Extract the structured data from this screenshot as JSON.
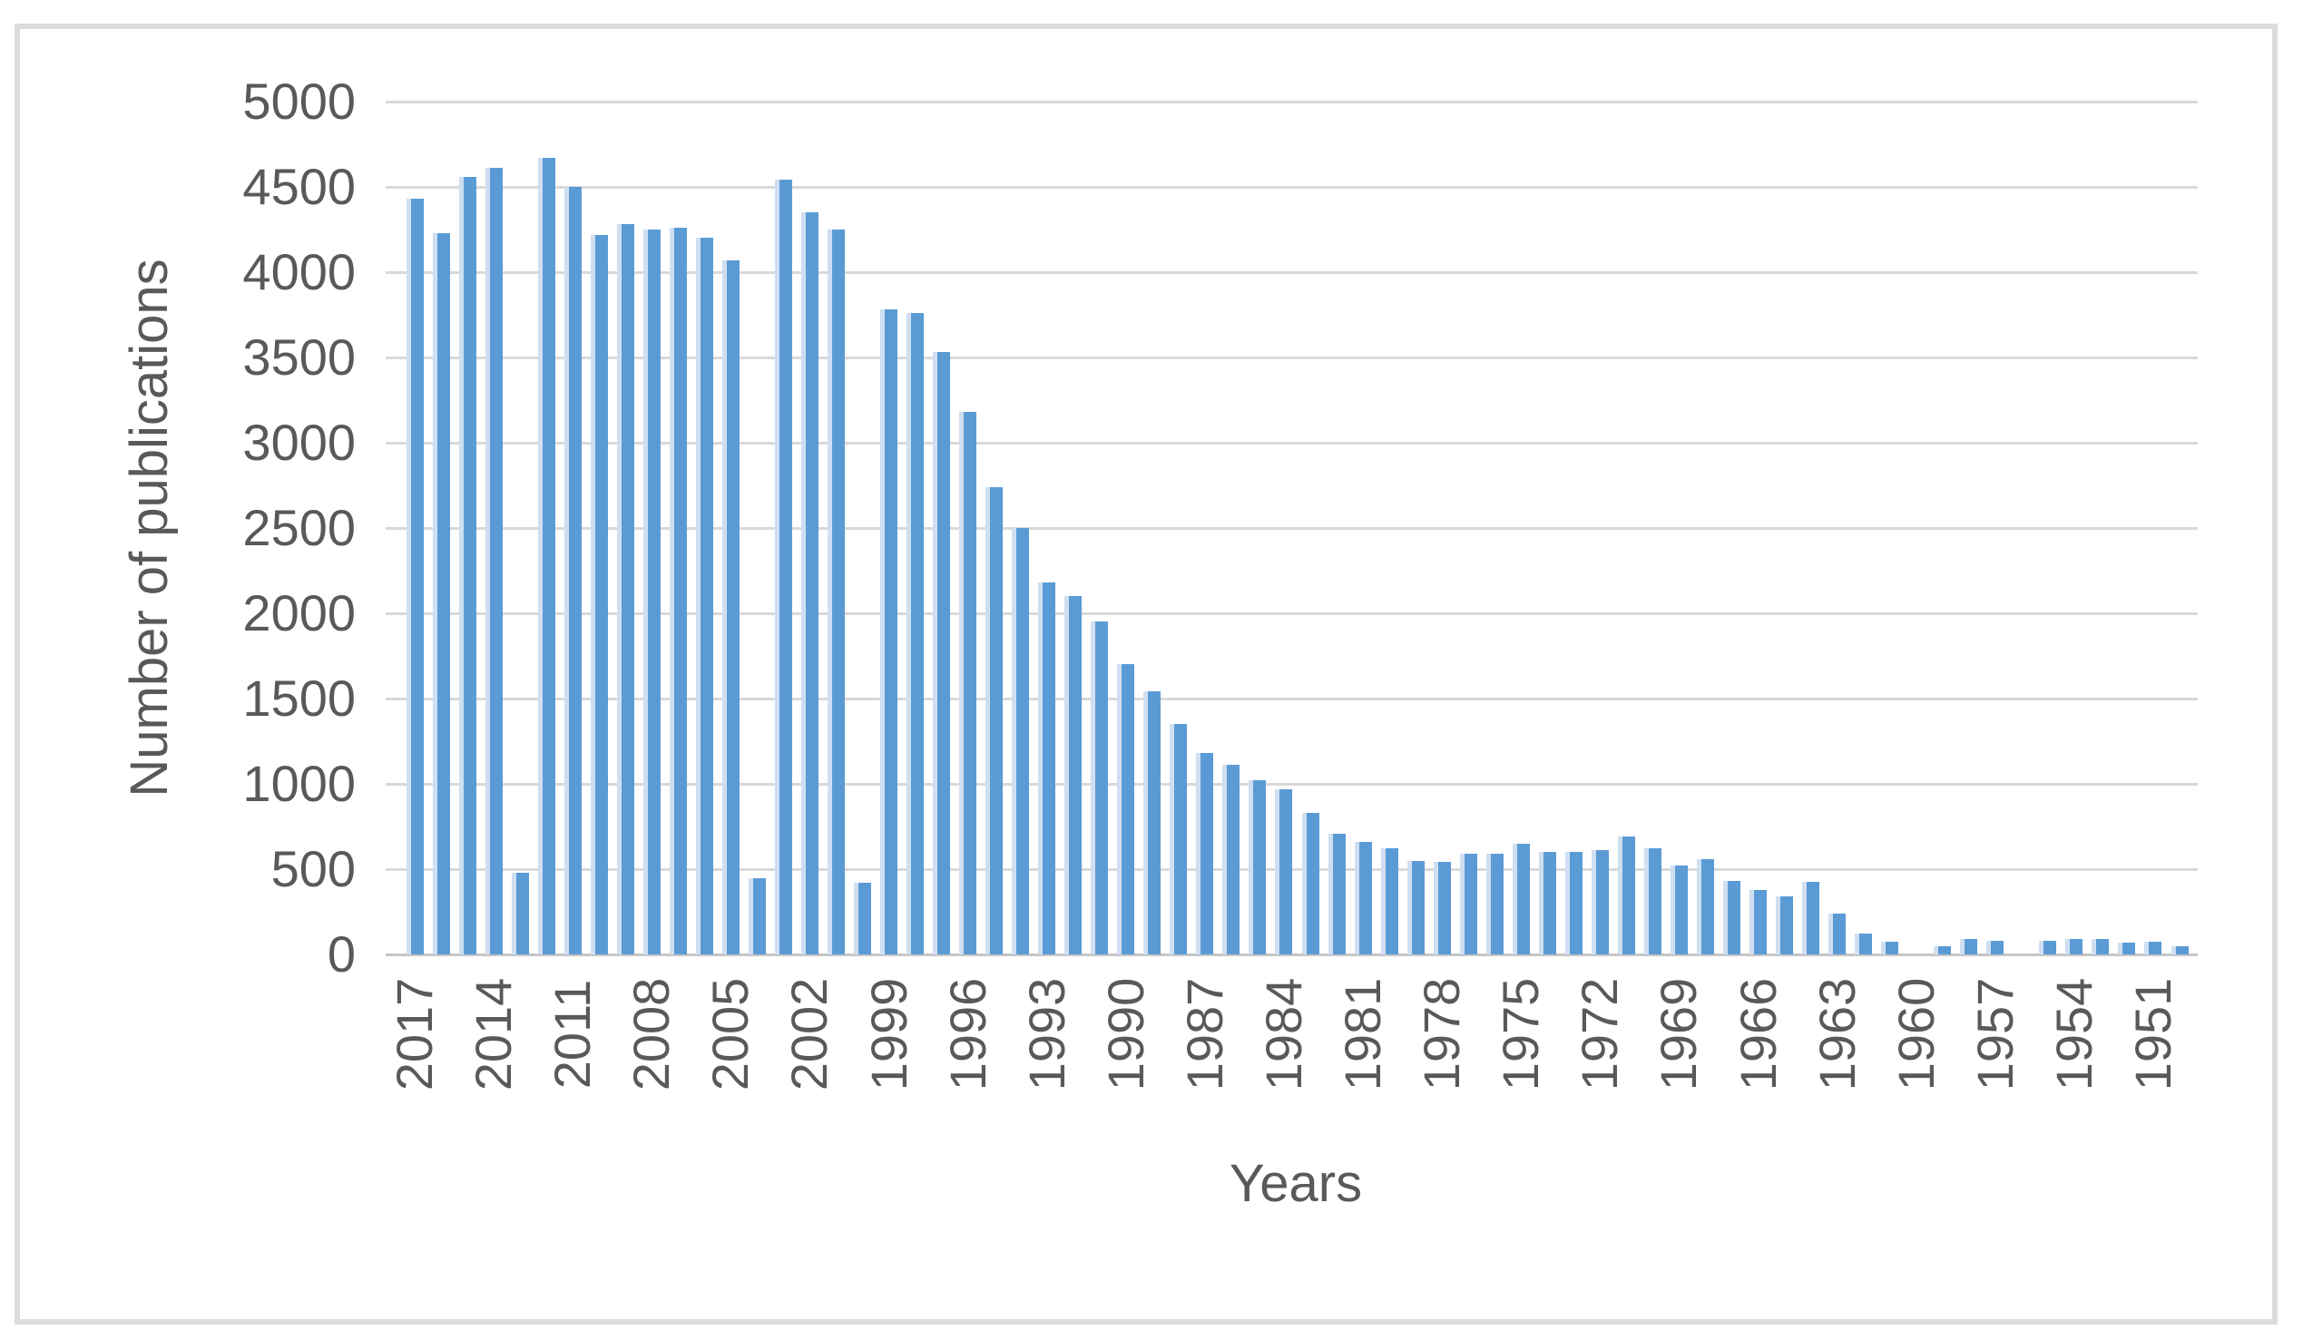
{
  "figure": {
    "background_color": "#ffffff",
    "border_color": "#dcdcdc"
  },
  "chart_data": {
    "type": "bar",
    "title": "",
    "xlabel": "Years",
    "ylabel": "Number of publications",
    "bar_color": "#5b9bd5",
    "bar_edge_color": "#cfdff1",
    "gridline_color": "#d9d9d9",
    "axis_text_color": "#595959",
    "grid": true,
    "legend_position": "none",
    "ylim": [
      0,
      5000
    ],
    "ytick_interval": 500,
    "yticks": [
      0,
      500,
      1000,
      1500,
      2000,
      2500,
      3000,
      3500,
      4000,
      4500,
      5000
    ],
    "x_label_every": 3,
    "x_labels_shown": [
      "2017",
      "2014",
      "2011",
      "2008",
      "2005",
      "2002",
      "1999",
      "1996",
      "1993",
      "1990",
      "1987",
      "1984",
      "1981",
      "1978",
      "1975",
      "1972",
      "1969",
      "1966",
      "1963",
      "1960",
      "1957",
      "1954",
      "1951"
    ],
    "categories": [
      "2017",
      "2016",
      "2015",
      "2014",
      "2013",
      "2012",
      "2011",
      "2010",
      "2009",
      "2008",
      "2007",
      "2006",
      "2005",
      "2004",
      "2003",
      "2002",
      "2001",
      "2000",
      "1999",
      "1998",
      "1997",
      "1996",
      "1995",
      "1994",
      "1993",
      "1992",
      "1991",
      "1990",
      "1989",
      "1988",
      "1987",
      "1986",
      "1985",
      "1984",
      "1983",
      "1982",
      "1981",
      "1980",
      "1979",
      "1978",
      "1977",
      "1976",
      "1975",
      "1974",
      "1973",
      "1972",
      "1971",
      "1970",
      "1969",
      "1968",
      "1967",
      "1966",
      "1965",
      "1964",
      "1963",
      "1962",
      "1961",
      "1960",
      "1959",
      "1958",
      "1957",
      "1956",
      "1955",
      "1954",
      "1953",
      "1952",
      "1951",
      "1950"
    ],
    "values": [
      4430,
      4230,
      4560,
      4610,
      480,
      4670,
      4500,
      4220,
      4280,
      4250,
      4260,
      4200,
      4070,
      445,
      4540,
      4350,
      4250,
      420,
      3780,
      3760,
      3530,
      3180,
      2740,
      2500,
      2180,
      2100,
      1950,
      1700,
      1540,
      1350,
      1180,
      1110,
      1020,
      970,
      830,
      710,
      660,
      620,
      550,
      540,
      590,
      590,
      650,
      600,
      600,
      610,
      690,
      620,
      520,
      560,
      430,
      380,
      340,
      425,
      240,
      120,
      75,
      0,
      50,
      90,
      80,
      0,
      80,
      90,
      90,
      70,
      75,
      50
    ]
  }
}
